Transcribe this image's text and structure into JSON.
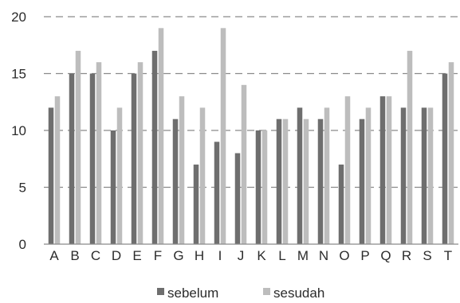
{
  "chart_data": {
    "type": "bar",
    "categories": [
      "A",
      "B",
      "C",
      "D",
      "E",
      "F",
      "G",
      "H",
      "I",
      "J",
      "K",
      "L",
      "M",
      "N",
      "O",
      "P",
      "Q",
      "R",
      "S",
      "T"
    ],
    "series": [
      {
        "name": "sebelum",
        "color": "#6e6e6e",
        "values": [
          12,
          15,
          15,
          10,
          15,
          17,
          11,
          7,
          9,
          8,
          10,
          11,
          12,
          11,
          7,
          11,
          13,
          12,
          12,
          15
        ]
      },
      {
        "name": "sesudah",
        "color": "#bdbdbd",
        "values": [
          13,
          17,
          16,
          12,
          16,
          19,
          13,
          12,
          19,
          14,
          10,
          11,
          11,
          12,
          13,
          12,
          13,
          17,
          12,
          16
        ]
      }
    ],
    "ylim": [
      0,
      20
    ],
    "yticks": [
      0,
      5,
      10,
      15,
      20
    ],
    "grid": "dashed horizontal",
    "legend_position": "bottom"
  }
}
